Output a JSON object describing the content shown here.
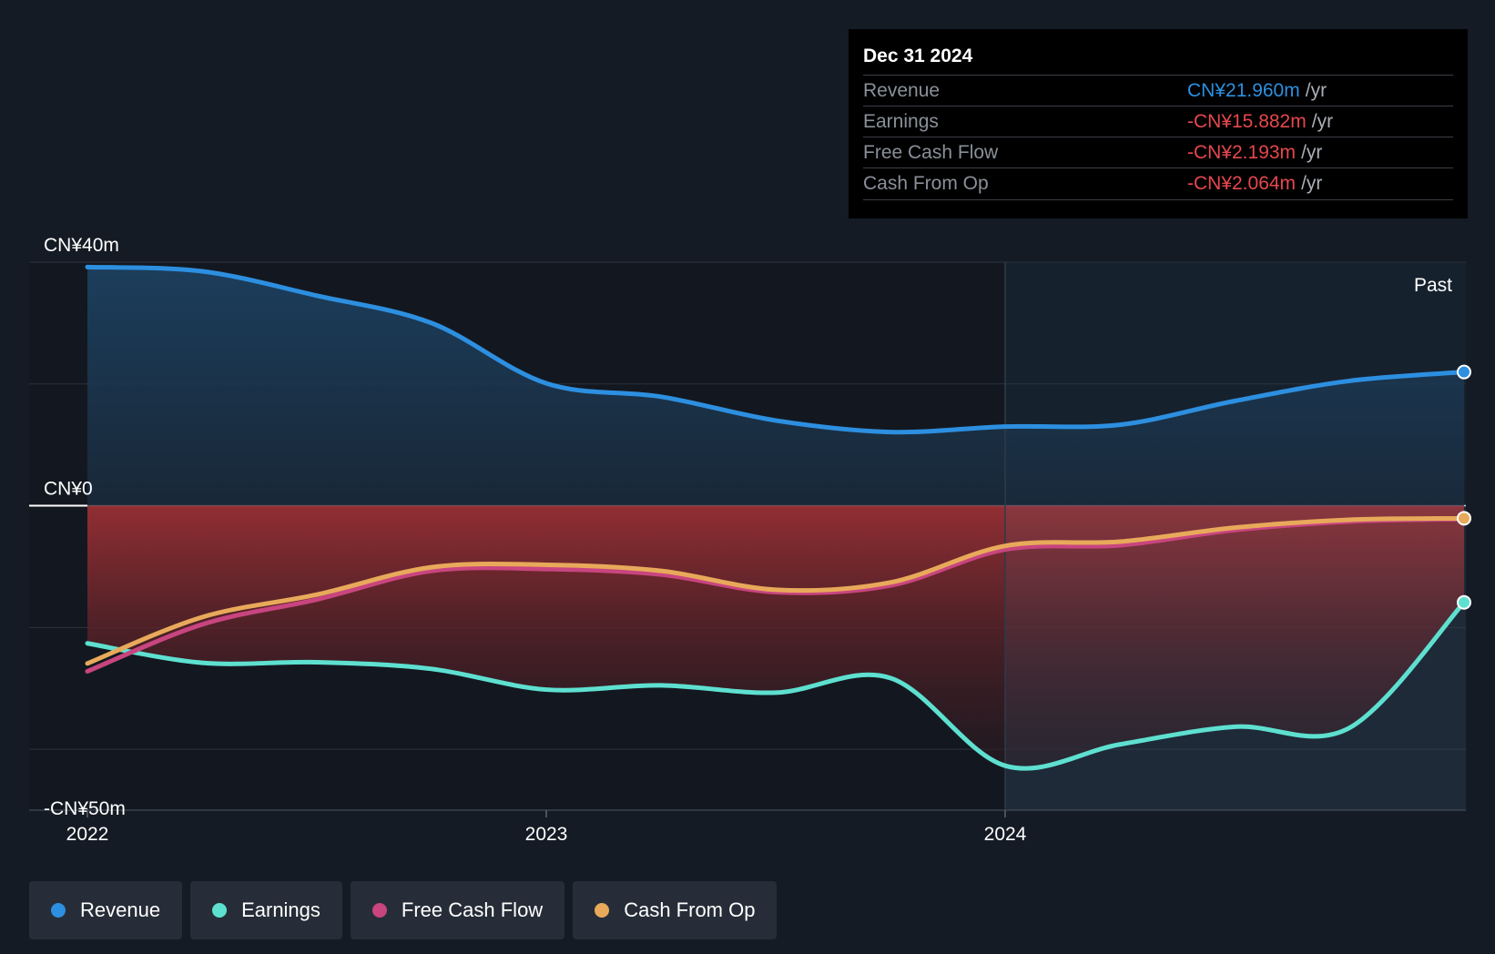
{
  "tooltip": {
    "date": "Dec 31 2024",
    "rows": [
      {
        "label": "Revenue",
        "value": "CN¥21.960m",
        "unit": "/yr",
        "color": "#2d8fe0"
      },
      {
        "label": "Earnings",
        "value": "-CN¥15.882m",
        "unit": "/yr",
        "color": "#e5484d"
      },
      {
        "label": "Free Cash Flow",
        "value": "-CN¥2.193m",
        "unit": "/yr",
        "color": "#e5484d"
      },
      {
        "label": "Cash From Op",
        "value": "-CN¥2.064m",
        "unit": "/yr",
        "color": "#e5484d"
      }
    ]
  },
  "past_label": "Past",
  "legend": [
    {
      "label": "Revenue",
      "color": "#2d8fe0"
    },
    {
      "label": "Earnings",
      "color": "#5ee0d0"
    },
    {
      "label": "Free Cash Flow",
      "color": "#c8457f"
    },
    {
      "label": "Cash From Op",
      "color": "#e8a95a"
    }
  ],
  "chart_data": {
    "type": "line",
    "y_tick_labels": [
      "CN¥40m",
      "CN¥0",
      "-CN¥50m"
    ],
    "y_ticks": [
      40,
      0,
      -50
    ],
    "x_tick_labels": [
      "2022",
      "2023",
      "2024"
    ],
    "x_ticks": [
      2022,
      2023,
      2024
    ],
    "ylim": [
      -50,
      40
    ],
    "xlim": [
      2021.875,
      2025.0
    ],
    "past_region_start": 2024,
    "grid": true,
    "series": [
      {
        "name": "Revenue",
        "color": "#2d8fe0",
        "x": [
          2022.0,
          2022.25,
          2022.5,
          2022.75,
          2023.0,
          2023.25,
          2023.5,
          2023.75,
          2024.0,
          2024.25,
          2024.5,
          2024.75,
          2025.0
        ],
        "y": [
          39.2,
          38.5,
          34.5,
          30.0,
          20.1,
          17.9,
          14.0,
          12.1,
          13.0,
          13.3,
          17.2,
          20.5,
          21.96
        ]
      },
      {
        "name": "Earnings",
        "color": "#5ee0d0",
        "x": [
          2022.0,
          2022.25,
          2022.5,
          2022.75,
          2023.0,
          2023.25,
          2023.5,
          2023.75,
          2024.0,
          2024.25,
          2024.5,
          2024.75,
          2025.0
        ],
        "y": [
          -22.6,
          -25.8,
          -25.7,
          -26.8,
          -30.2,
          -29.5,
          -30.7,
          -28.3,
          -42.7,
          -39.2,
          -36.3,
          -36.5,
          -15.88
        ]
      },
      {
        "name": "Free Cash Flow",
        "color": "#c8457f",
        "x": [
          2022.0,
          2022.25,
          2022.5,
          2022.75,
          2023.0,
          2023.25,
          2023.5,
          2023.75,
          2024.0,
          2024.25,
          2024.5,
          2024.75,
          2025.0
        ],
        "y": [
          -27.2,
          -19.5,
          -15.4,
          -10.7,
          -10.4,
          -11.3,
          -14.2,
          -13.1,
          -7.2,
          -6.5,
          -4.0,
          -2.6,
          -2.19
        ]
      },
      {
        "name": "Cash From Op",
        "color": "#e8a95a",
        "x": [
          2022.0,
          2022.25,
          2022.5,
          2022.75,
          2023.0,
          2023.25,
          2023.5,
          2023.75,
          2024.0,
          2024.25,
          2024.5,
          2024.75,
          2025.0
        ],
        "y": [
          -25.9,
          -18.3,
          -14.6,
          -10.1,
          -9.7,
          -10.7,
          -13.8,
          -12.6,
          -6.6,
          -5.9,
          -3.6,
          -2.3,
          -2.06
        ]
      }
    ]
  }
}
